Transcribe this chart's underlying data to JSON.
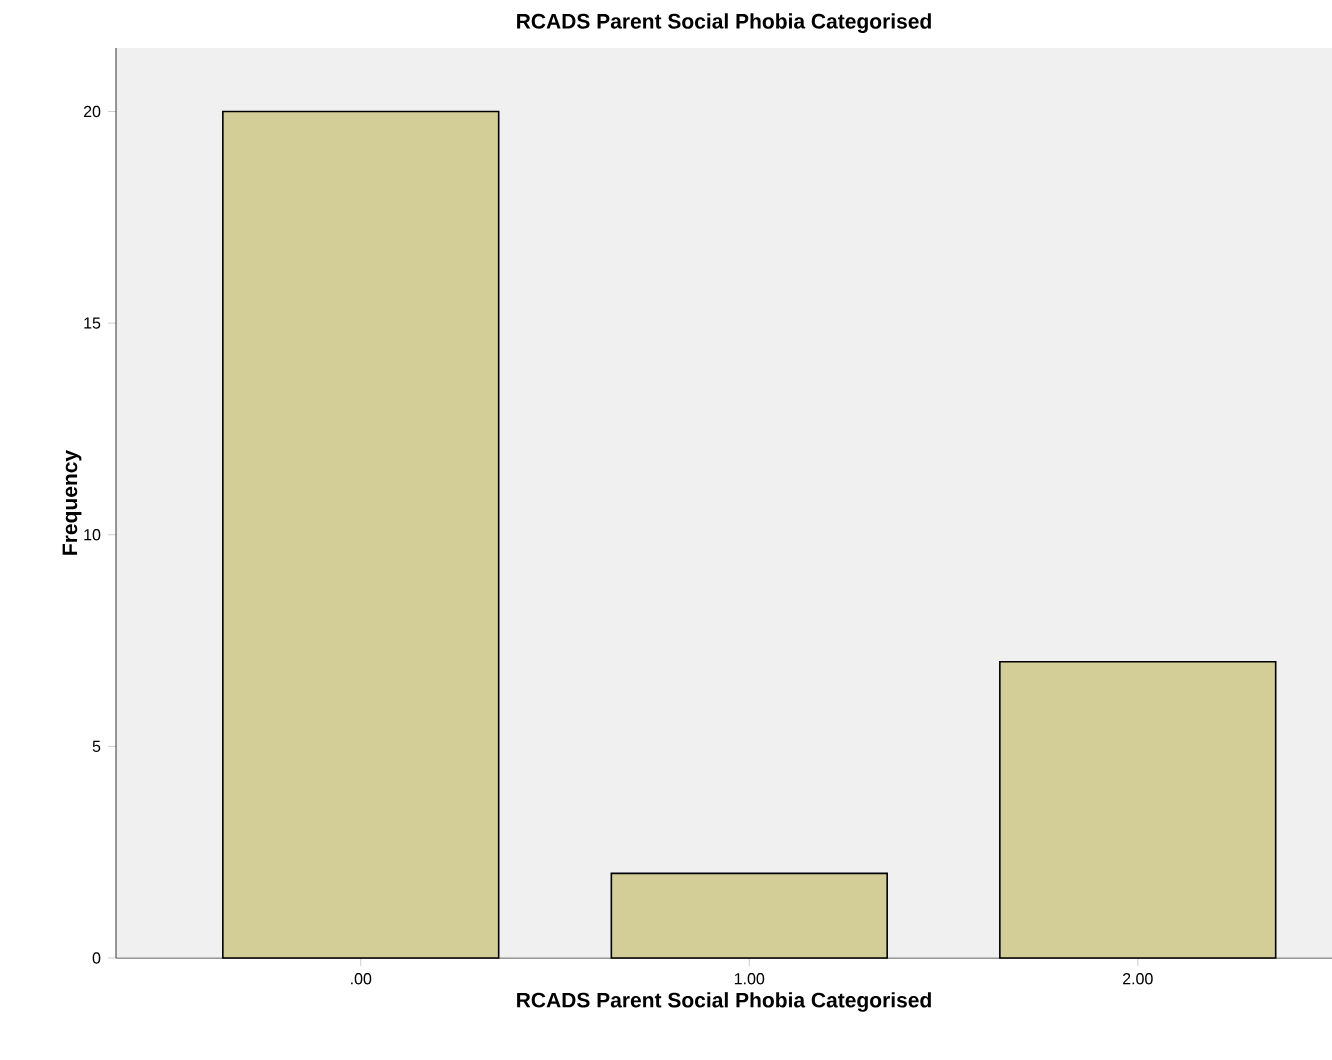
{
  "chart_data": {
    "type": "bar",
    "title": "RCADS Parent Social Phobia Categorised",
    "xlabel": "RCADS Parent Social Phobia Categorised",
    "ylabel": "Frequency",
    "categories": [
      ".00",
      "1.00",
      "2.00"
    ],
    "values": [
      20,
      2,
      7
    ],
    "color": "#d3ce97",
    "ylim": [
      0,
      21.5
    ],
    "yticks": [
      0,
      5,
      10,
      15,
      20
    ]
  }
}
